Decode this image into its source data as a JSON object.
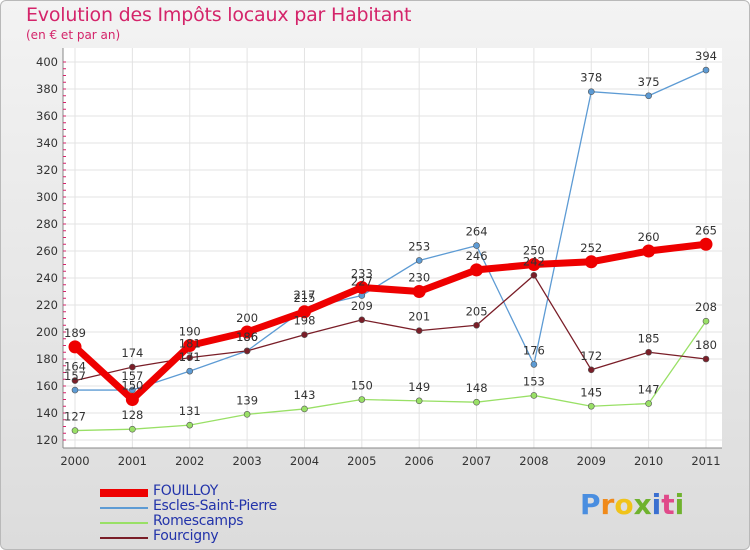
{
  "chart_data": {
    "type": "line",
    "title": "Evolution des Impôts locaux par Habitant",
    "subtitle": "(en € et par an)",
    "x": [
      "2000",
      "2001",
      "2002",
      "2003",
      "2004",
      "2005",
      "2006",
      "2007",
      "2008",
      "2009",
      "2010",
      "2011"
    ],
    "ylim": [
      120,
      400
    ],
    "yticks": [
      120,
      140,
      160,
      180,
      200,
      220,
      240,
      260,
      280,
      300,
      320,
      340,
      360,
      380,
      400
    ],
    "series": [
      {
        "name": "FOUILLOY",
        "color": "#ee0000",
        "values": [
          189,
          150,
          190,
          200,
          215,
          233,
          230,
          246,
          250,
          252,
          260,
          265
        ]
      },
      {
        "name": "Escles-Saint-Pierre",
        "color": "#5d9bd4",
        "values": [
          157,
          157,
          171,
          186,
          217,
          227,
          253,
          264,
          176,
          378,
          375,
          394
        ]
      },
      {
        "name": "Romescamps",
        "color": "#99e066",
        "values": [
          127,
          128,
          131,
          139,
          143,
          150,
          149,
          148,
          153,
          145,
          147,
          208
        ]
      },
      {
        "name": "Fourcigny",
        "color": "#7a1e28",
        "values": [
          164,
          174,
          181,
          186,
          198,
          209,
          201,
          205,
          242,
          172,
          185,
          180
        ]
      }
    ]
  },
  "logo": {
    "letters": [
      "P",
      "r",
      "o",
      "x",
      "i",
      "t",
      "i"
    ],
    "colors": [
      "#4a8ee0",
      "#f08a1a",
      "#f0c31a",
      "#6fb22e",
      "#3a6fd0",
      "#e04a8a",
      "#6fb22e"
    ]
  }
}
